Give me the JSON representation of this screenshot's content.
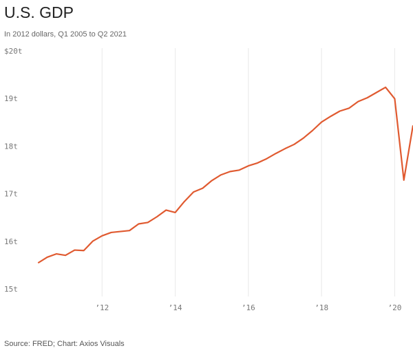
{
  "chart_data": {
    "type": "line",
    "title": "U.S. GDP",
    "subtitle": "In 2012 dollars, Q1 2005 to Q2 2021",
    "source": "Source: FRED; Chart: Axios Visuals",
    "x": [
      2010.25,
      2010.5,
      2010.75,
      2011.0,
      2011.25,
      2011.5,
      2011.75,
      2012.0,
      2012.25,
      2012.5,
      2012.75,
      2013.0,
      2013.25,
      2013.5,
      2013.75,
      2014.0,
      2014.25,
      2014.5,
      2014.75,
      2015.0,
      2015.25,
      2015.5,
      2015.75,
      2016.0,
      2016.25,
      2016.5,
      2016.75,
      2017.0,
      2017.25,
      2017.5,
      2017.75,
      2018.0,
      2018.25,
      2018.5,
      2018.75,
      2019.0,
      2019.25,
      2019.5,
      2019.75,
      2020.0,
      2020.25,
      2020.5
    ],
    "series": [
      {
        "color": "#e05a30",
        "values": [
          15.56,
          15.68,
          15.75,
          15.72,
          15.83,
          15.82,
          16.02,
          16.13,
          16.2,
          16.22,
          16.24,
          16.38,
          16.41,
          16.53,
          16.67,
          16.62,
          16.85,
          17.05,
          17.13,
          17.29,
          17.41,
          17.48,
          17.51,
          17.6,
          17.66,
          17.75,
          17.86,
          17.96,
          18.05,
          18.18,
          18.34,
          18.52,
          18.64,
          18.75,
          18.81,
          18.95,
          19.03,
          19.14,
          19.25,
          19.01,
          17.3,
          18.45
        ]
      }
    ],
    "xlim": [
      2010,
      2020.5
    ],
    "xticks": [
      {
        "value": 2012,
        "label": "’12"
      },
      {
        "value": 2014,
        "label": "’14"
      },
      {
        "value": 2016,
        "label": "’16"
      },
      {
        "value": 2018,
        "label": "’18"
      },
      {
        "value": 2020,
        "label": "’20"
      }
    ],
    "ylim": [
      15,
      20
    ],
    "yticks": [
      {
        "value": 20,
        "label": "$20t"
      },
      {
        "value": 19,
        "label": "19t"
      },
      {
        "value": 18,
        "label": "18t"
      },
      {
        "value": 17,
        "label": "17t"
      },
      {
        "value": 16,
        "label": "16t"
      },
      {
        "value": 15,
        "label": "15t"
      }
    ],
    "grid": true
  }
}
